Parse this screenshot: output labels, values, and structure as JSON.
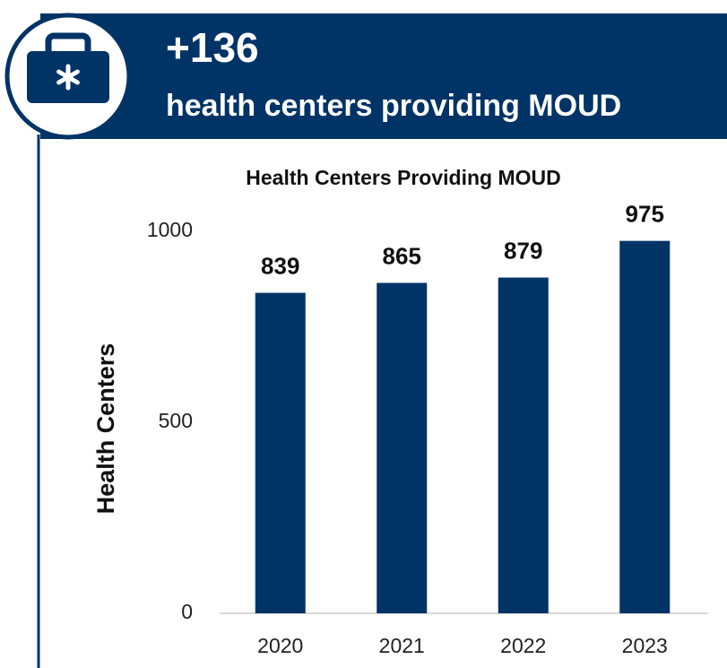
{
  "header": {
    "stat": "+136",
    "text": "health centers providing MOUD"
  },
  "chart_data": {
    "type": "bar",
    "title": "Health Centers Providing MOUD",
    "y_label": "Health Centers",
    "categories": [
      "2020",
      "2021",
      "2022",
      "2023"
    ],
    "values": [
      839,
      865,
      879,
      975
    ],
    "color": "#003366",
    "ylim": [
      0,
      1000
    ],
    "yticks": [
      0,
      500,
      1000
    ],
    "grid": false
  }
}
